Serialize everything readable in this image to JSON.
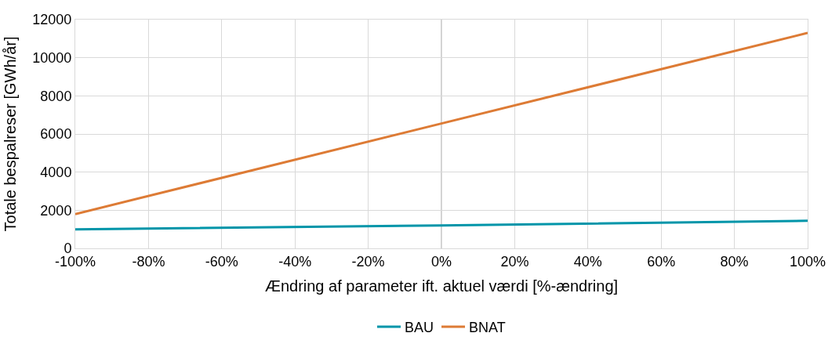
{
  "chart_data": {
    "type": "line",
    "x": [
      -100,
      0,
      100
    ],
    "series": [
      {
        "name": "BAU",
        "color": "#0095a9",
        "values": [
          1000,
          1200,
          1450
        ]
      },
      {
        "name": "BNAT",
        "color": "#dd7b35",
        "values": [
          1800,
          6550,
          11300
        ]
      }
    ],
    "xlabel": "Ændring af parameter ift. aktuel værdi [%-ændring]",
    "ylabel": "Totale bespalreser [GWh/år]",
    "xlim": [
      -100,
      100
    ],
    "xticks": [
      {
        "value": -100,
        "label": "-100%"
      },
      {
        "value": -80,
        "label": "-80%"
      },
      {
        "value": -60,
        "label": "-60%"
      },
      {
        "value": -40,
        "label": "-40%"
      },
      {
        "value": -20,
        "label": "-20%"
      },
      {
        "value": 0,
        "label": "0%"
      },
      {
        "value": 20,
        "label": "20%"
      },
      {
        "value": 40,
        "label": "40%"
      },
      {
        "value": 60,
        "label": "60%"
      },
      {
        "value": 80,
        "label": "80%"
      },
      {
        "value": 100,
        "label": "100%"
      }
    ],
    "ylim": [
      0,
      12000
    ],
    "yticks": [
      0,
      2000,
      4000,
      6000,
      8000,
      10000,
      12000
    ],
    "ref_lines": [
      {
        "axis": "x",
        "value": 0,
        "color": "#bfbfbf"
      }
    ],
    "grid": true,
    "legend": "bottom",
    "marker": "none",
    "line_style": "solid"
  }
}
